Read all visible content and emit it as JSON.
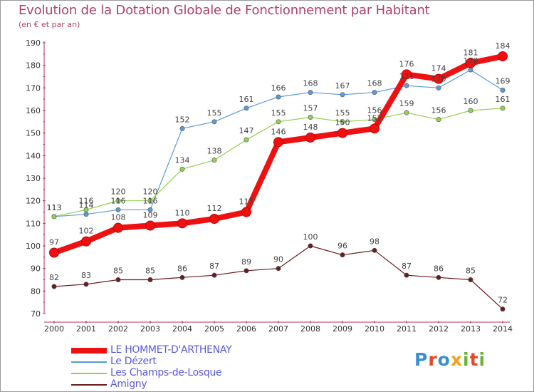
{
  "title": "Evolution de la Dotation Globale de Fonctionnement par Habitant",
  "subtitle": "(en € et par an)",
  "logo": {
    "text": "Proxiti",
    "parts": [
      "P",
      "r",
      "o",
      "x",
      "i",
      "t",
      "i"
    ]
  },
  "chart_data": {
    "type": "line",
    "title": "Evolution de la Dotation Globale de Fonctionnement par Habitant",
    "ylabel": "(en € et par an)",
    "xlabel": "",
    "x": [
      2000,
      2001,
      2002,
      2003,
      2004,
      2005,
      2006,
      2007,
      2008,
      2009,
      2010,
      2011,
      2012,
      2013,
      2014
    ],
    "ylim": [
      70,
      190
    ],
    "yticks": [
      70,
      80,
      90,
      100,
      110,
      120,
      130,
      140,
      150,
      160,
      170,
      180,
      190
    ],
    "grid": false,
    "legend_position": "bottom-left",
    "series": [
      {
        "name": "LE HOMMET-D'ARTHENAY",
        "color": "#ee1111",
        "values": [
          97,
          102,
          108,
          109,
          110,
          112,
          115,
          146,
          148,
          150,
          152,
          176,
          174,
          181,
          184
        ]
      },
      {
        "name": "Le Dézert",
        "color": "#5b9bd5",
        "values": [
          113,
          114,
          116,
          116,
          152,
          155,
          161,
          166,
          168,
          167,
          168,
          171,
          170,
          178,
          169
        ]
      },
      {
        "name": "Les Champs-de-Losque",
        "color": "#92d050",
        "values": [
          113,
          116,
          120,
          120,
          134,
          138,
          147,
          155,
          157,
          155,
          156,
          159,
          156,
          160,
          161
        ]
      },
      {
        "name": "Amigny",
        "color": "#6b1c1c",
        "values": [
          82,
          83,
          85,
          85,
          86,
          87,
          89,
          90,
          100,
          96,
          98,
          87,
          86,
          85,
          72
        ]
      }
    ]
  }
}
